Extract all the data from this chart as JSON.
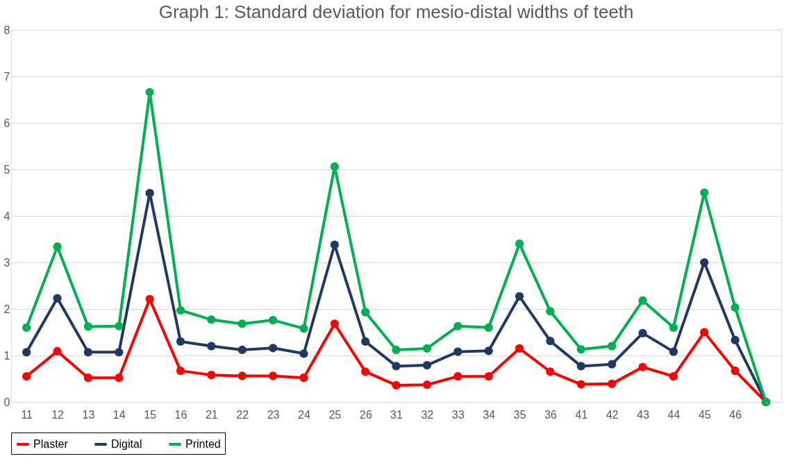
{
  "chart_data": {
    "type": "line",
    "title": "Graph 1: Standard deviation for mesio-distal widths of teeth",
    "categories": [
      "11",
      "12",
      "13",
      "14",
      "15",
      "16",
      "21",
      "22",
      "23",
      "24",
      "25",
      "26",
      "31",
      "32",
      "33",
      "34",
      "35",
      "36",
      "41",
      "42",
      "43",
      "44",
      "45",
      "46",
      null
    ],
    "series": [
      {
        "name": "Plaster",
        "color": "#ff0000",
        "values": [
          0.55,
          1.09,
          0.52,
          0.52,
          2.21,
          0.67,
          0.58,
          0.56,
          0.56,
          0.52,
          1.68,
          0.65,
          0.36,
          0.37,
          0.55,
          0.55,
          1.15,
          0.65,
          0.38,
          0.39,
          0.75,
          0.55,
          1.5,
          0.67,
          0
        ]
      },
      {
        "name": "Digital",
        "color": "#1f3864",
        "values": [
          1.07,
          2.23,
          1.07,
          1.07,
          4.49,
          1.3,
          1.2,
          1.12,
          1.16,
          1.04,
          3.38,
          1.3,
          0.77,
          0.79,
          1.08,
          1.1,
          2.27,
          1.31,
          0.77,
          0.81,
          1.48,
          1.08,
          3.0,
          1.33,
          0
        ]
      },
      {
        "name": "Printed",
        "color": "#00b050",
        "values": [
          1.6,
          3.34,
          1.62,
          1.63,
          6.66,
          1.97,
          1.77,
          1.68,
          1.76,
          1.58,
          5.06,
          1.93,
          1.12,
          1.15,
          1.63,
          1.6,
          3.4,
          1.95,
          1.13,
          1.2,
          2.18,
          1.6,
          4.5,
          2.03,
          0
        ]
      }
    ],
    "ylim": [
      0,
      8
    ],
    "yticks": [
      0,
      1,
      2,
      3,
      4,
      5,
      6,
      7,
      8
    ],
    "grid": "y",
    "legend": "bottom",
    "marker": "circle",
    "line_style": "solid"
  }
}
